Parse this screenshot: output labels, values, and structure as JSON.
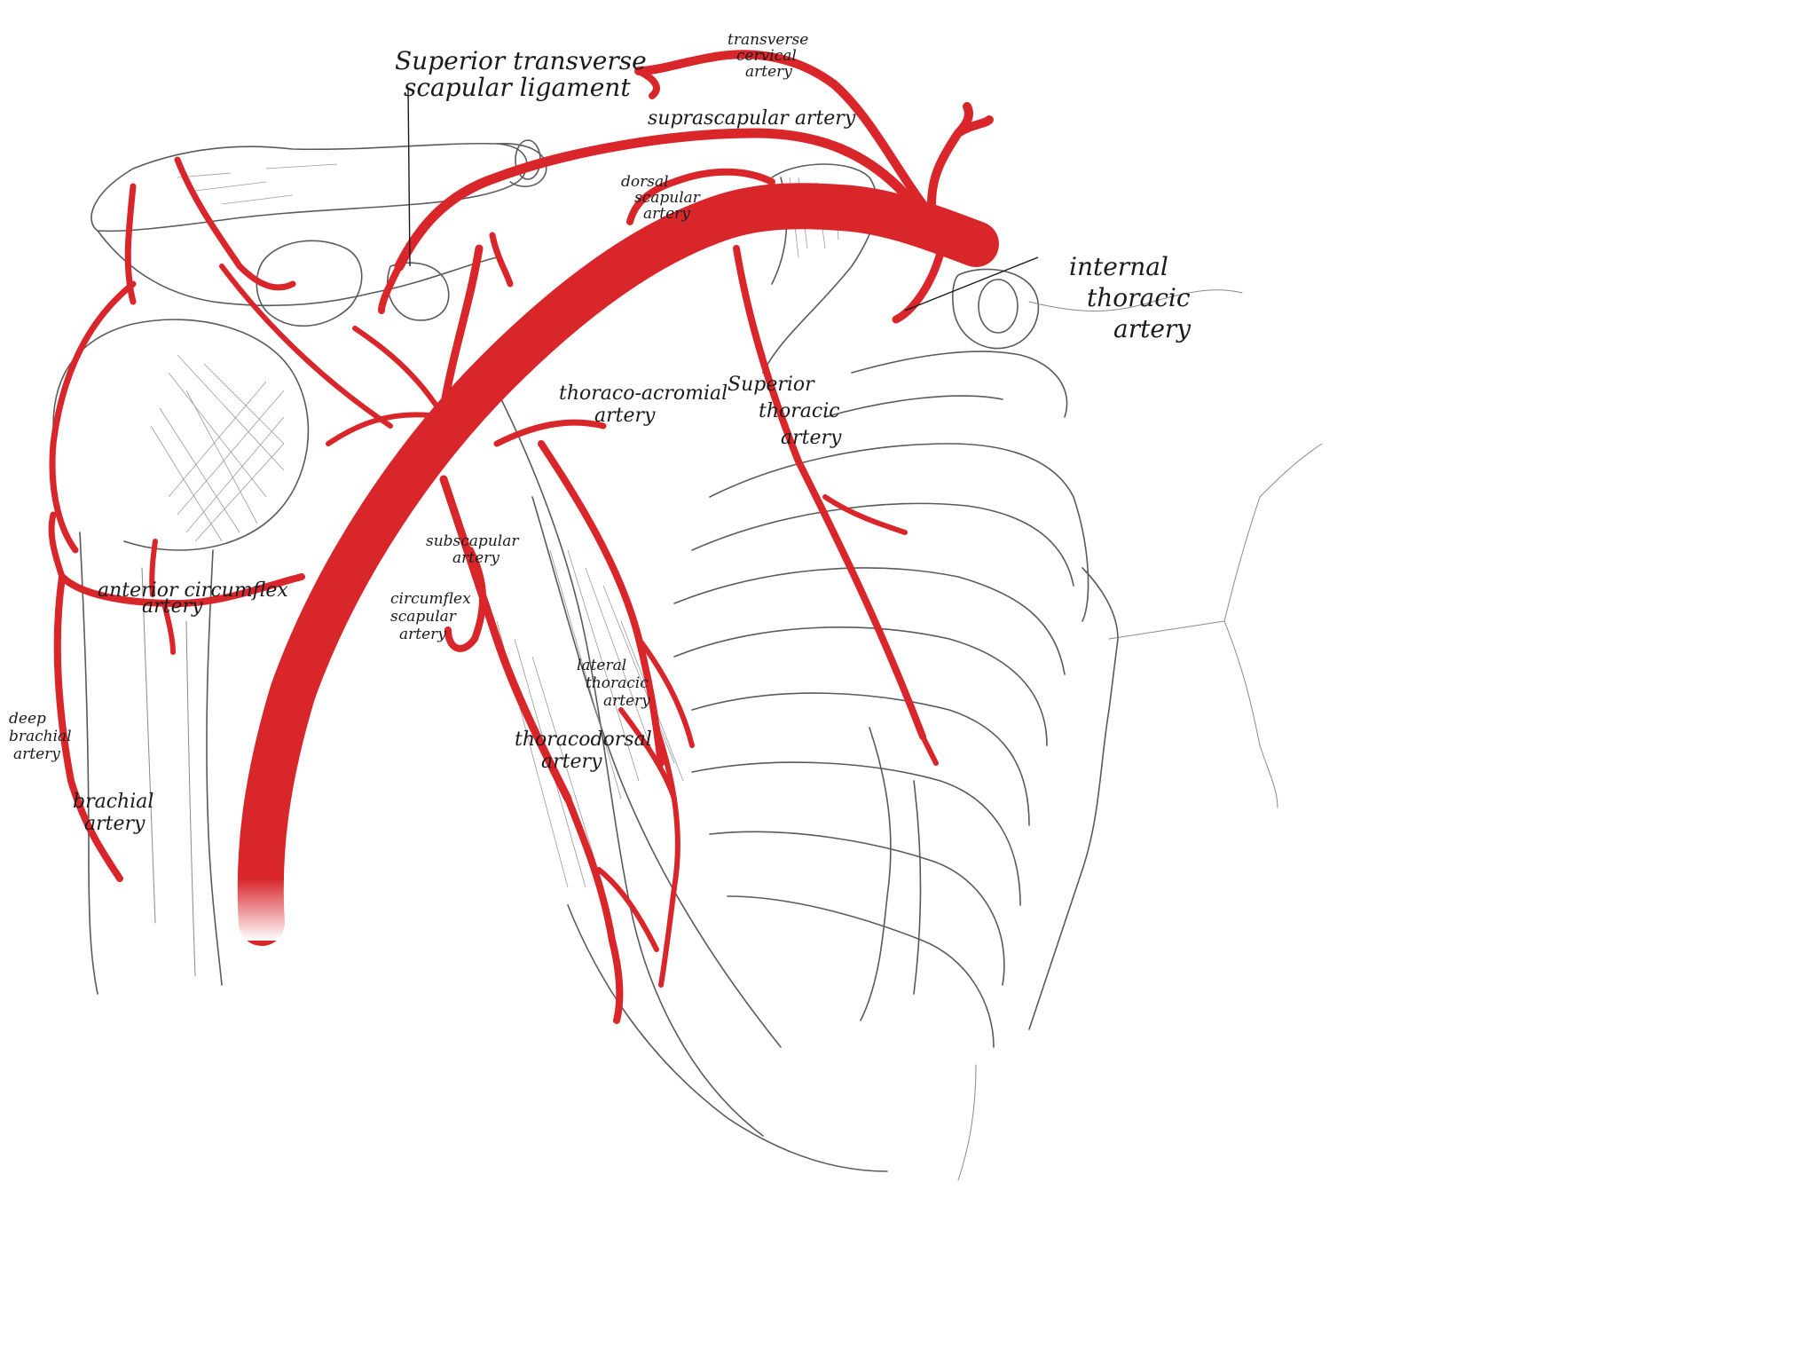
{
  "colors": {
    "artery": "#d8262b",
    "artery_dark": "#b81a1f",
    "sketch": "#5a5a5a",
    "background": "#ffffff",
    "label": "#1a1a1a"
  },
  "labels": {
    "superior_transverse_scapular_ligament": [
      "Superior transverse",
      "scapular ligament"
    ],
    "transverse_cervical_artery": [
      "transverse",
      "cervical",
      "artery"
    ],
    "suprascapular_artery": [
      "suprascapular artery"
    ],
    "dorsal_scapular_artery": [
      "dorsal",
      "scapular",
      "artery"
    ],
    "internal_thoracic_artery": [
      "internal",
      "thoracic",
      "artery"
    ],
    "thoraco_acromial_artery": [
      "thoraco-acromial",
      "artery"
    ],
    "superior_thoracic_artery": [
      "Superior",
      "thoracic",
      "artery"
    ],
    "subscapular_artery": [
      "subscapular",
      "artery"
    ],
    "anterior_circumflex_artery": [
      "anterior circumflex",
      "artery"
    ],
    "circumflex_scapular_artery": [
      "circumflex",
      "scapular",
      "artery"
    ],
    "lateral_thoracic_artery": [
      "lateral",
      "thoracic",
      "artery"
    ],
    "thoracodorsal_artery": [
      "thoracodorsal",
      "artery"
    ],
    "deep_brachial_artery": [
      "deep",
      "brachial",
      "artery"
    ],
    "brachial_artery": [
      "brachial",
      "artery"
    ]
  }
}
